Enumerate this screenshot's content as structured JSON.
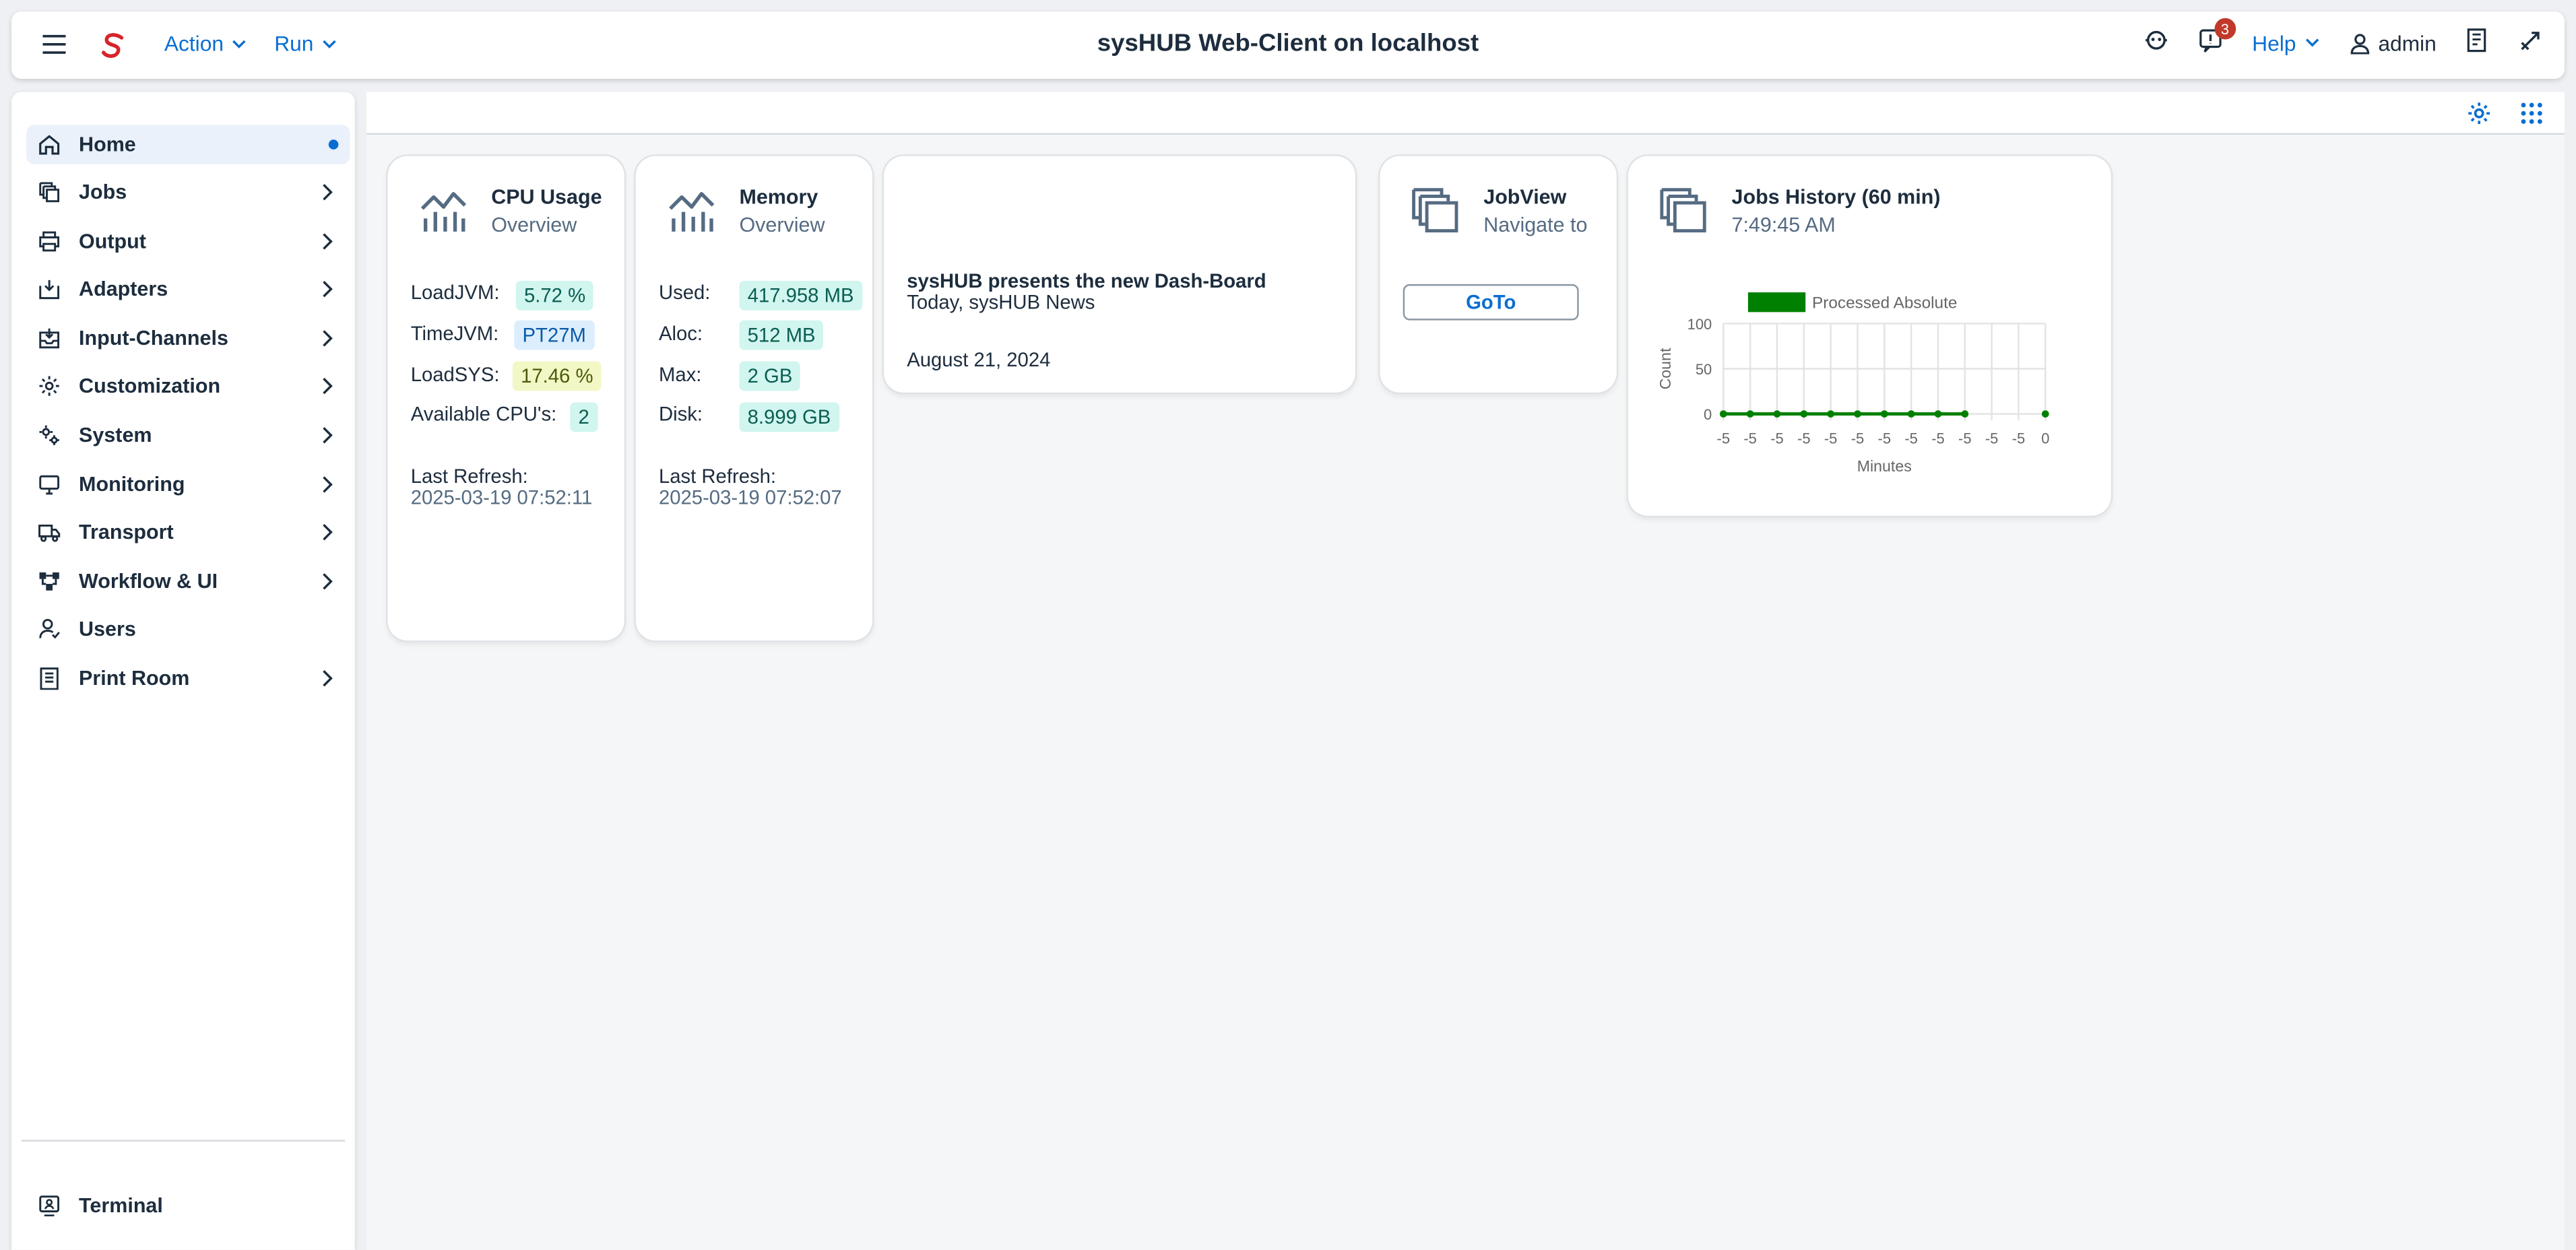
{
  "header": {
    "title": "sysHUB Web-Client on localhost",
    "menu": [
      "Action",
      "Run"
    ],
    "notification_count": "3",
    "help_label": "Help",
    "user_label": "admin"
  },
  "sidebar": {
    "items": [
      {
        "label": "Home",
        "icon": "home-icon"
      },
      {
        "label": "Jobs",
        "icon": "jobs-icon"
      },
      {
        "label": "Output",
        "icon": "printer-icon"
      },
      {
        "label": "Adapters",
        "icon": "adapter-icon"
      },
      {
        "label": "Input-Channels",
        "icon": "inbox-icon"
      },
      {
        "label": "Customization",
        "icon": "customize-icon"
      },
      {
        "label": "System",
        "icon": "system-gear-icon"
      },
      {
        "label": "Monitoring",
        "icon": "monitor-icon"
      },
      {
        "label": "Transport",
        "icon": "truck-icon"
      },
      {
        "label": "Workflow & UI",
        "icon": "workflow-icon"
      },
      {
        "label": "Users",
        "icon": "user-icon"
      },
      {
        "label": "Print Room",
        "icon": "print-room-icon"
      }
    ],
    "footer": {
      "label": "Terminal",
      "icon": "terminal-icon"
    }
  },
  "cards": {
    "cpu": {
      "title": "CPU Usage",
      "subtitle": "Overview",
      "rows": [
        {
          "label": "LoadJVM:",
          "value": "5.72 %"
        },
        {
          "label": "TimeJVM:",
          "value": "PT27M"
        },
        {
          "label": "LoadSYS:",
          "value": "17.46 %"
        },
        {
          "label": "Available CPU's:",
          "value": "2"
        }
      ],
      "refresh_label": "Last Refresh:",
      "refresh_value": "2025-03-19 07:52:11"
    },
    "memory": {
      "title": "Memory",
      "subtitle": "Overview",
      "rows": [
        {
          "label": "Used:",
          "value": "417.958 MB"
        },
        {
          "label": "Aloc:",
          "value": "512 MB"
        },
        {
          "label": "Max:",
          "value": "2 GB"
        },
        {
          "label": "Disk:",
          "value": "8.999 GB"
        }
      ],
      "refresh_label": "Last Refresh:",
      "refresh_value": "2025-03-19 07:52:07"
    },
    "news": {
      "title": "sysHUB presents the new Dash-Board",
      "subtitle": "Today, sysHUB News",
      "date": "August 21, 2024"
    },
    "jobview": {
      "title": "JobView",
      "subtitle": "Navigate to",
      "button": "GoTo"
    },
    "history": {
      "title": "Jobs History (60 min)",
      "subtitle": "7:49:45 AM"
    }
  },
  "chart_data": {
    "type": "line",
    "legend": "Processed Absolute",
    "xlabel": "Minutes",
    "ylabel": "Count",
    "x": [
      "-5",
      "-5",
      "-5",
      "-5",
      "-5",
      "-5",
      "-5",
      "-5",
      "-5",
      "-5",
      "-5",
      "-5",
      "0"
    ],
    "series": [
      {
        "name": "Processed Absolute",
        "values": [
          0,
          0,
          0,
          0,
          0,
          0,
          0,
          0,
          0,
          0,
          null,
          null,
          0
        ]
      }
    ],
    "ylim": [
      0,
      100
    ],
    "yticks": [
      0,
      50,
      100
    ],
    "color": "#008000"
  }
}
